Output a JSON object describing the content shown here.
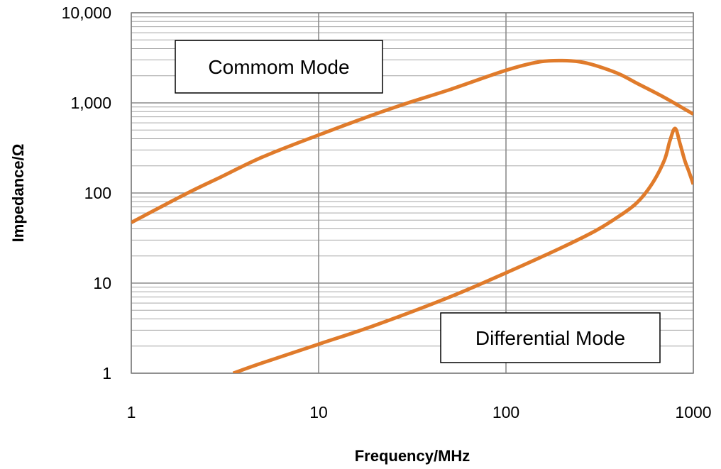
{
  "chart_data": {
    "type": "line",
    "title": "",
    "xlabel": "Frequency/MHz",
    "ylabel": "Impedance/Ω",
    "xscale": "log",
    "yscale": "log",
    "xlim": [
      1,
      1000
    ],
    "ylim": [
      1,
      10000
    ],
    "grid": true,
    "x_ticks": [
      1,
      10,
      100,
      1000
    ],
    "x_tick_labels": [
      "1",
      "10",
      "100",
      "1000"
    ],
    "y_ticks": [
      1,
      10,
      100,
      1000,
      10000
    ],
    "y_tick_labels": [
      "1",
      "10",
      "100",
      "1,000",
      "10,000"
    ],
    "line_color": "#E07B2B",
    "series": [
      {
        "key": "common",
        "x": [
          1,
          2,
          3,
          5,
          10,
          20,
          30,
          50,
          100,
          150,
          200,
          250,
          300,
          400,
          500,
          700,
          1000
        ],
        "y": [
          47,
          100,
          150,
          250,
          440,
          750,
          1000,
          1400,
          2300,
          2850,
          2950,
          2850,
          2600,
          2100,
          1650,
          1150,
          750
        ]
      },
      {
        "key": "differential",
        "x": [
          3.5,
          5,
          10,
          20,
          50,
          100,
          200,
          300,
          400,
          500,
          600,
          700,
          750,
          800,
          850,
          900,
          950,
          1000
        ],
        "y": [
          1,
          1.3,
          2.1,
          3.4,
          7,
          13,
          25,
          38,
          55,
          78,
          125,
          230,
          380,
          520,
          350,
          230,
          170,
          125
        ]
      }
    ],
    "annotations": [
      {
        "key": "common",
        "text": "Commom Mode"
      },
      {
        "key": "differential",
        "text": "Differential Mode"
      }
    ]
  }
}
